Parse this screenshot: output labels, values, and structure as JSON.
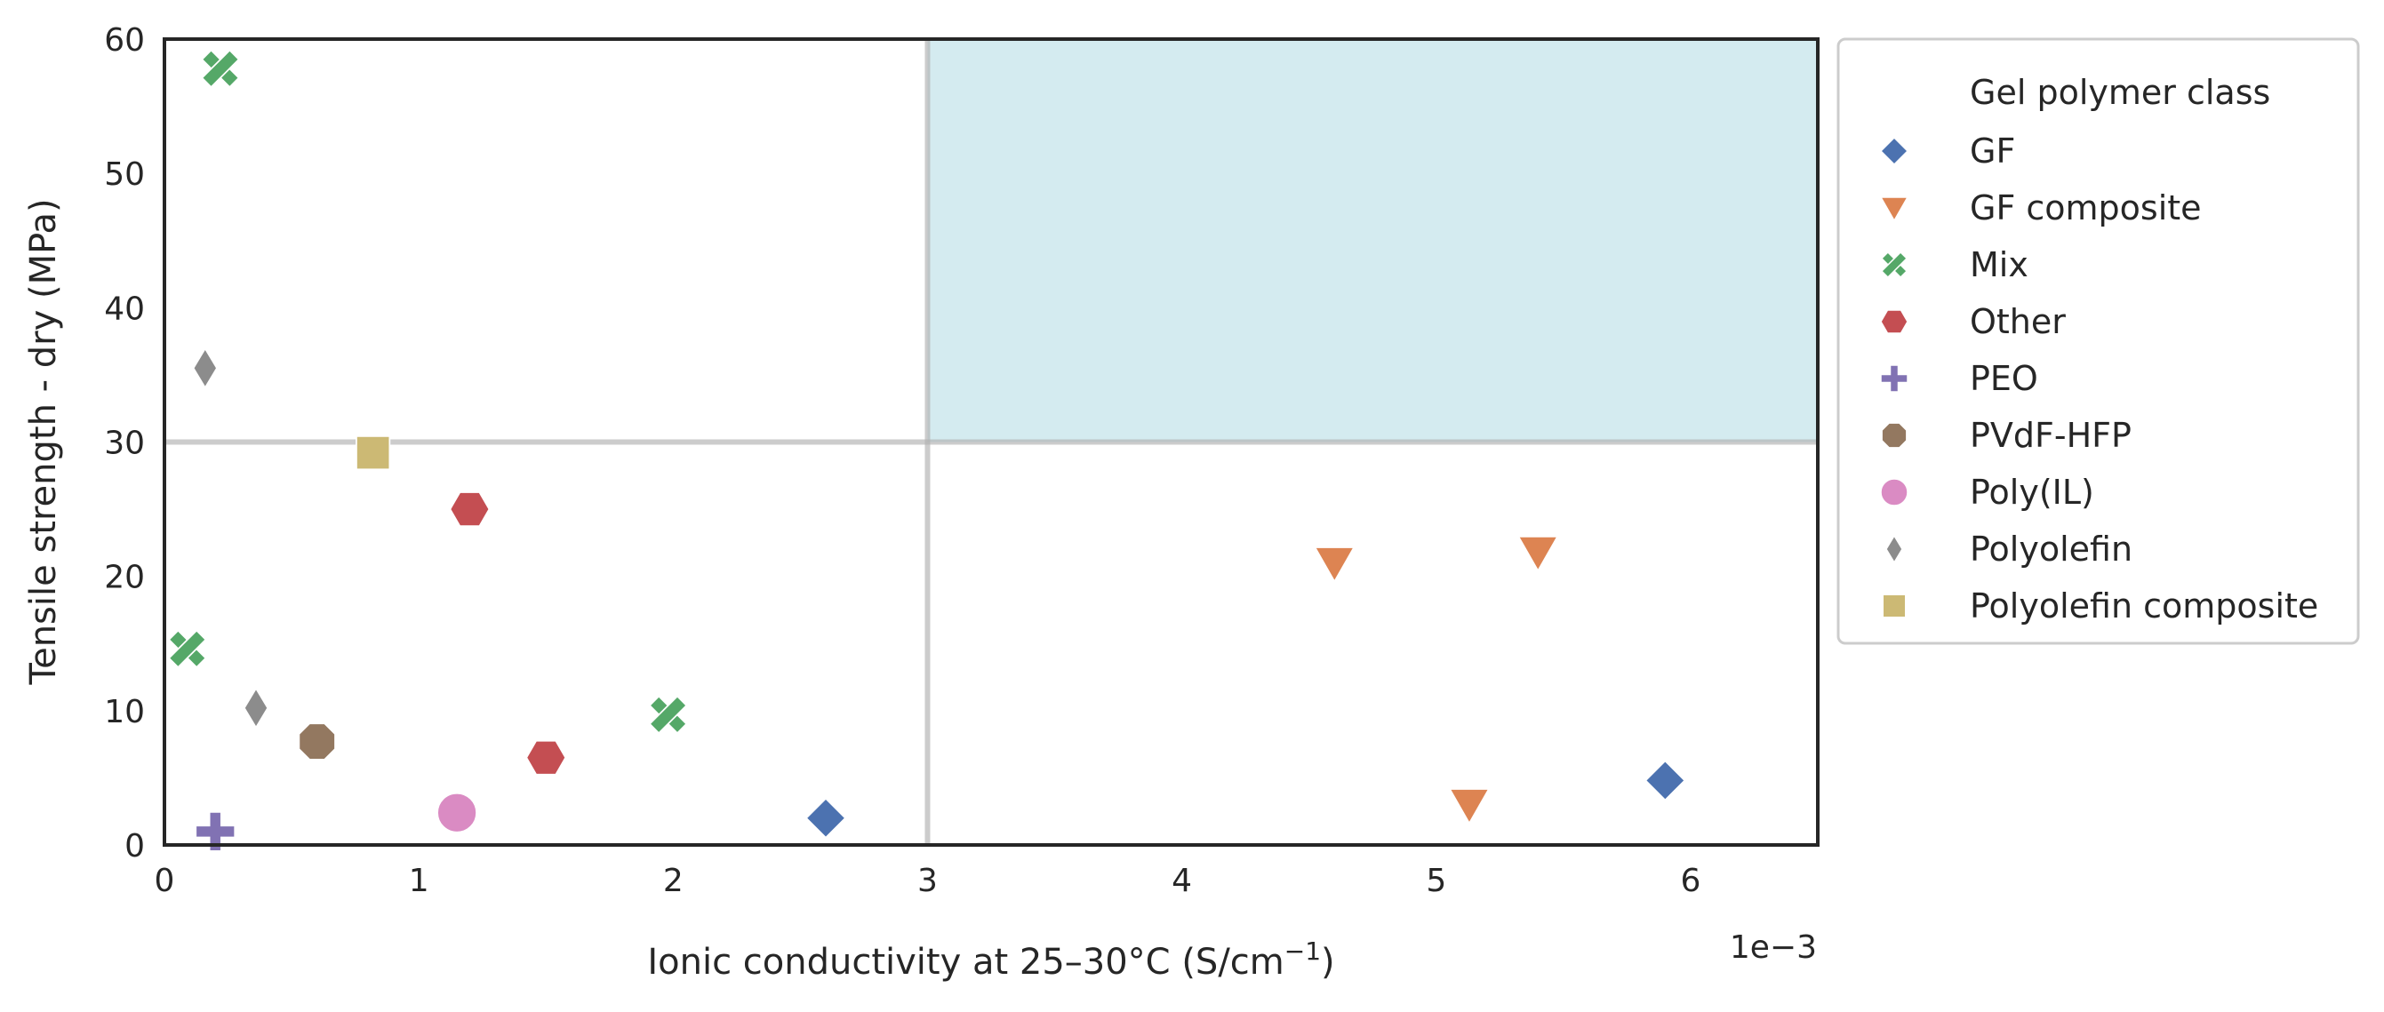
{
  "chart_data": {
    "type": "scatter",
    "xlabel": "Ionic conductivity at 25–30°C (S/cm",
    "xlabel_superscript": "−1",
    "xlabel_suffix": ")",
    "ylabel": "Tensile strength - dry (MPa)",
    "x_offset_text": "1e−3",
    "x_scale_factor": 0.001,
    "xlim": [
      0,
      6.5
    ],
    "ylim": [
      0,
      60
    ],
    "x_ticks": [
      0,
      1,
      2,
      3,
      4,
      5,
      6
    ],
    "y_ticks": [
      0,
      10,
      20,
      30,
      40,
      50,
      60
    ],
    "grid": false,
    "reference_lines": {
      "x": 3,
      "y": 30,
      "color": "#b0b0b0"
    },
    "target_region": {
      "x": [
        3,
        6.5
      ],
      "y": [
        30,
        60
      ],
      "color": "#d4ebf0"
    },
    "legend": {
      "title": "Gel polymer class",
      "placement": "outside-right"
    },
    "series": [
      {
        "name": "GF",
        "marker": "diamond",
        "color": "#4c72b0",
        "points": [
          [
            2.6,
            2.0
          ],
          [
            5.9,
            4.8
          ]
        ]
      },
      {
        "name": "GF composite",
        "marker": "triangle-down",
        "color": "#dd8452",
        "points": [
          [
            4.6,
            21.0
          ],
          [
            5.4,
            21.8
          ],
          [
            5.13,
            3.0
          ]
        ]
      },
      {
        "name": "Mix",
        "marker": "x",
        "color": "#55a868",
        "points": [
          [
            0.22,
            57.8
          ],
          [
            0.09,
            14.6
          ],
          [
            1.98,
            9.7
          ]
        ]
      },
      {
        "name": "Other",
        "marker": "hexagon",
        "color": "#c44e52",
        "points": [
          [
            1.2,
            25.0
          ],
          [
            1.5,
            6.5
          ]
        ]
      },
      {
        "name": "PEO",
        "marker": "plus",
        "color": "#8172b3",
        "points": [
          [
            0.2,
            1.0
          ]
        ]
      },
      {
        "name": "PVdF-HFP",
        "marker": "octagon",
        "color": "#937860",
        "points": [
          [
            0.6,
            7.7
          ]
        ]
      },
      {
        "name": "Poly(IL)",
        "marker": "circle",
        "color": "#da8bc3",
        "points": [
          [
            1.15,
            2.4
          ]
        ]
      },
      {
        "name": "Polyolefin",
        "marker": "thin-diamond",
        "color": "#8c8c8c",
        "points": [
          [
            0.16,
            35.5
          ],
          [
            0.36,
            10.2
          ]
        ]
      },
      {
        "name": "Polyolefin composite",
        "marker": "square",
        "color": "#ccb974",
        "points": [
          [
            0.82,
            29.2
          ]
        ]
      }
    ]
  }
}
